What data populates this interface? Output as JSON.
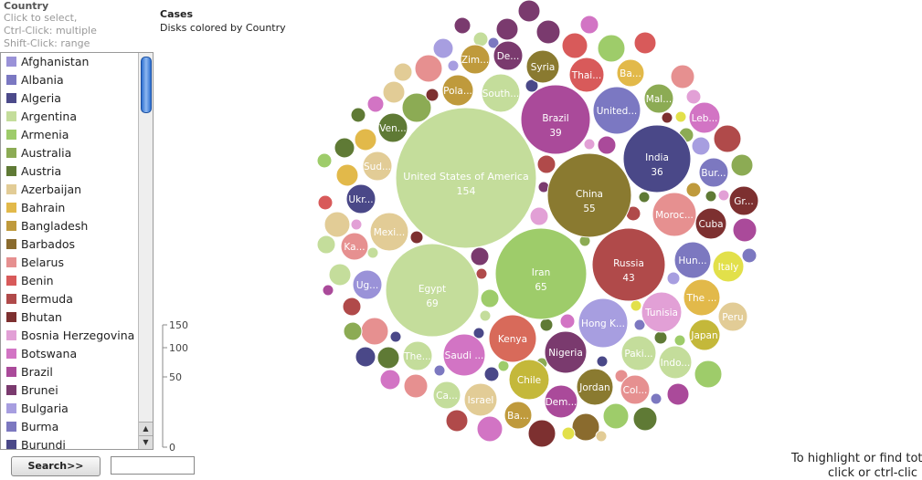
{
  "country_panel": {
    "title": "Country",
    "hints": [
      "Click to select,",
      "Ctrl-Click: multiple",
      "Shift-Click: range"
    ],
    "items": [
      {
        "label": "Afghanistan",
        "color": "#9a92d8"
      },
      {
        "label": "Albania",
        "color": "#7b78c2"
      },
      {
        "label": "Algeria",
        "color": "#4c4a8a"
      },
      {
        "label": "Argentina",
        "color": "#c4dd9b"
      },
      {
        "label": "Armenia",
        "color": "#9ecc6a"
      },
      {
        "label": "Australia",
        "color": "#8cab54"
      },
      {
        "label": "Austria",
        "color": "#5f7a35"
      },
      {
        "label": "Azerbaijan",
        "color": "#e2cc96"
      },
      {
        "label": "Bahrain",
        "color": "#e2b94a"
      },
      {
        "label": "Bangladesh",
        "color": "#bf9a3c"
      },
      {
        "label": "Barbados",
        "color": "#8a6b2e"
      },
      {
        "label": "Belarus",
        "color": "#e69090"
      },
      {
        "label": "Benin",
        "color": "#d85a5a"
      },
      {
        "label": "Bermuda",
        "color": "#b04a4a"
      },
      {
        "label": "Bhutan",
        "color": "#7d3030"
      },
      {
        "label": "Bosnia Herzegovina",
        "color": "#e2a0d6"
      },
      {
        "label": "Botswana",
        "color": "#d274c4"
      },
      {
        "label": "Brazil",
        "color": "#aa4a9a"
      },
      {
        "label": "Brunei",
        "color": "#7a3a6e"
      },
      {
        "label": "Bulgaria",
        "color": "#a79ee0"
      },
      {
        "label": "Burma",
        "color": "#7c78c0"
      },
      {
        "label": "Burundi",
        "color": "#4a4888"
      }
    ],
    "search_label": "Search>>",
    "search_value": ""
  },
  "chart_header": {
    "title": "Cases",
    "subtitle": "Disks colored by Country"
  },
  "size_legend": {
    "ticks": [
      "150",
      "100",
      "50",
      "0"
    ]
  },
  "hint_lines": [
    "To highlight or find tot",
    "click or ctrl-clic"
  ],
  "chart_data": {
    "type": "bubble",
    "title": "Cases",
    "subtitle": "Disks colored by Country",
    "size_scale_ticks": [
      150,
      100,
      50,
      0
    ],
    "labeled_bubbles": [
      {
        "label": "United States of America",
        "value": 154,
        "value_text": "154",
        "color": "#c4dd9b"
      },
      {
        "label": "Egypt",
        "value": 69,
        "value_text": "69",
        "color": "#c4dd9b"
      },
      {
        "label": "Iran",
        "value": 65,
        "value_text": "65",
        "color": "#9ecc6a"
      },
      {
        "label": "China",
        "value": 55,
        "value_text": "55",
        "color": "#8a7a30"
      },
      {
        "label": "Russia",
        "value": 43,
        "value_text": "43",
        "color": "#b04a4a"
      },
      {
        "label": "Brazil",
        "value": 39,
        "value_text": "39",
        "color": "#aa4a9a"
      },
      {
        "label": "India",
        "value": 36,
        "value_text": "36",
        "color": "#4a4888"
      },
      {
        "label": "United...",
        "color": "#7b78c2"
      },
      {
        "label": "Moroc...",
        "color": "#e69090"
      },
      {
        "label": "Hong K...",
        "color": "#a79ee0"
      },
      {
        "label": "Tunisia",
        "color": "#e2a0d6"
      },
      {
        "label": "Kenya",
        "color": "#d86a5a"
      },
      {
        "label": "Nigeria",
        "color": "#7a3a6e"
      },
      {
        "label": "Chile",
        "color": "#c4b83a"
      },
      {
        "label": "Jordan",
        "color": "#8a7a30"
      },
      {
        "label": "Saudi ...",
        "color": "#d274c4"
      },
      {
        "label": "Pola...",
        "color": "#bf9a3c"
      },
      {
        "label": "South...",
        "color": "#c4dd9b"
      },
      {
        "label": "Zim...",
        "color": "#bf9a3c"
      },
      {
        "label": "De...",
        "color": "#7a3a6e"
      },
      {
        "label": "Syria",
        "color": "#8a7a30"
      },
      {
        "label": "Thai...",
        "color": "#d85a5a"
      },
      {
        "label": "Ba...",
        "color": "#e2b94a"
      },
      {
        "label": "Mal...",
        "color": "#8cab54"
      },
      {
        "label": "Leb...",
        "color": "#d274c4"
      },
      {
        "label": "Ven...",
        "color": "#5f7a35"
      },
      {
        "label": "Sud...",
        "color": "#e2cc96"
      },
      {
        "label": "Bur...",
        "color": "#7c78c0"
      },
      {
        "label": "Gr...",
        "color": "#7d3030"
      },
      {
        "label": "Cuba",
        "color": "#7d3030"
      },
      {
        "label": "Ukr...",
        "color": "#4a4888"
      },
      {
        "label": "Mexi...",
        "color": "#e2cc96"
      },
      {
        "label": "Ka...",
        "color": "#e69090"
      },
      {
        "label": "Hun...",
        "color": "#7c78c0"
      },
      {
        "label": "Italy",
        "color": "#e2e04a"
      },
      {
        "label": "The ...",
        "color": "#e2b94a"
      },
      {
        "label": "Peru",
        "color": "#e2cc96"
      },
      {
        "label": "Ug...",
        "color": "#9a92d8"
      },
      {
        "label": "Japan",
        "color": "#c4b83a"
      },
      {
        "label": "Paki...",
        "color": "#c4dd9b"
      },
      {
        "label": "Indo...",
        "color": "#c4dd9b"
      },
      {
        "label": "Col...",
        "color": "#e69090"
      },
      {
        "label": "Dem...",
        "color": "#aa4a9a"
      },
      {
        "label": "The...",
        "color": "#c4dd9b"
      },
      {
        "label": "Israel",
        "color": "#e2cc96"
      },
      {
        "label": "Ca...",
        "color": "#c4dd9b"
      },
      {
        "label": "Ba...",
        "color": "#bf9a3c"
      }
    ]
  }
}
